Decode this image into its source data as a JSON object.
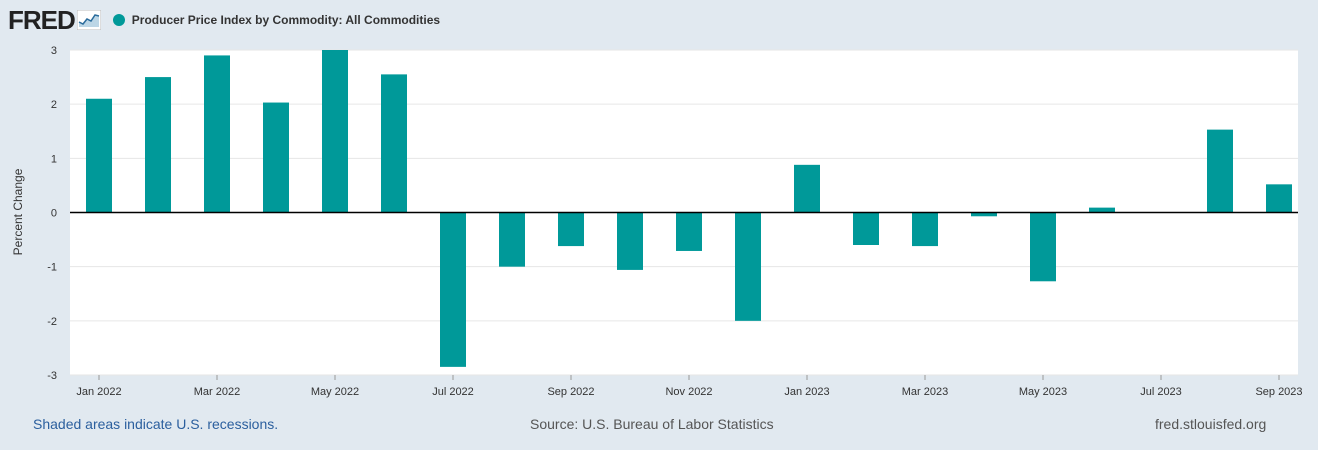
{
  "header": {
    "logo_text": "FRED",
    "series_title": "Producer Price Index by Commodity: All Commodities",
    "series_color": "#009999"
  },
  "footer": {
    "recession_note": "Shaded areas indicate U.S. recessions.",
    "source": "Source: U.S. Bureau of Labor Statistics",
    "site": "fred.stlouisfed.org"
  },
  "chart_data": {
    "type": "bar",
    "title": "Producer Price Index by Commodity: All Commodities",
    "xlabel": "",
    "ylabel": "Percent Change",
    "ylim": [
      -3,
      3
    ],
    "yticks": [
      3,
      2,
      1,
      0,
      -1,
      -2,
      -3
    ],
    "grid": true,
    "legend": "top-left",
    "bar_color": "#009999",
    "categories": [
      "Jan 2022",
      "Feb 2022",
      "Mar 2022",
      "Apr 2022",
      "May 2022",
      "Jun 2022",
      "Jul 2022",
      "Aug 2022",
      "Sep 2022",
      "Oct 2022",
      "Nov 2022",
      "Dec 2022",
      "Jan 2023",
      "Feb 2023",
      "Mar 2023",
      "Apr 2023",
      "May 2023",
      "Jun 2023",
      "Jul 2023",
      "Aug 2023",
      "Sep 2023"
    ],
    "values": [
      2.1,
      2.5,
      2.9,
      2.03,
      3.0,
      2.55,
      -2.85,
      -1.0,
      -0.62,
      -1.06,
      -0.71,
      -2.0,
      0.88,
      -0.6,
      -0.62,
      -0.07,
      -1.27,
      0.09,
      0.0,
      1.53,
      0.52
    ],
    "xtick_labels": [
      "Jan 2022",
      "Mar 2022",
      "May 2022",
      "Jul 2022",
      "Sep 2022",
      "Nov 2022",
      "Jan 2023",
      "Mar 2023",
      "May 2023",
      "Jul 2023",
      "Sep 2023"
    ]
  }
}
